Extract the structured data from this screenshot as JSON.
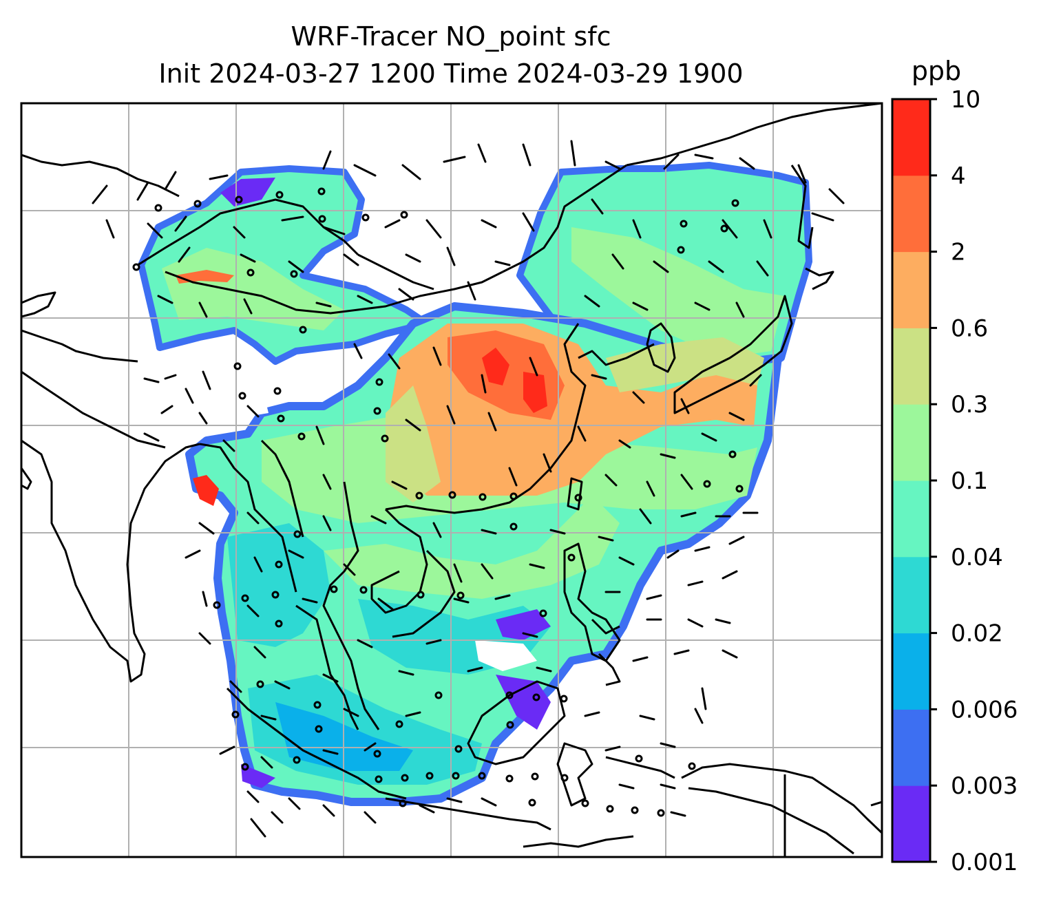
{
  "title_line1": "WRF-Tracer NO_point sfc",
  "title_line2": "Init 2024-03-27 1200 Time 2024-03-29 1900",
  "colorbar": {
    "unit": "ppb",
    "levels": [
      "0.001",
      "0.003",
      "0.006",
      "0.02",
      "0.04",
      "0.1",
      "0.3",
      "0.6",
      "2",
      "4",
      "10"
    ],
    "colors": [
      "#6a2bf5",
      "#3d6ff2",
      "#0ab0ea",
      "#2ed9d3",
      "#66f5c1",
      "#9cf79b",
      "#cbe184",
      "#fdad60",
      "#ff6e3a",
      "#ff2a1a"
    ]
  },
  "map": {
    "gridlines": true,
    "coastline_color": "#000000",
    "grid_color": "#b0b0b0"
  }
}
